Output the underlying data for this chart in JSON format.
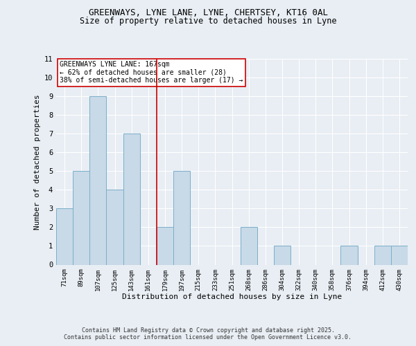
{
  "title_line1": "GREENWAYS, LYNE LANE, LYNE, CHERTSEY, KT16 0AL",
  "title_line2": "Size of property relative to detached houses in Lyne",
  "xlabel": "Distribution of detached houses by size in Lyne",
  "ylabel": "Number of detached properties",
  "categories": [
    "71sqm",
    "89sqm",
    "107sqm",
    "125sqm",
    "143sqm",
    "161sqm",
    "179sqm",
    "197sqm",
    "215sqm",
    "233sqm",
    "251sqm",
    "268sqm",
    "286sqm",
    "304sqm",
    "322sqm",
    "340sqm",
    "358sqm",
    "376sqm",
    "394sqm",
    "412sqm",
    "430sqm"
  ],
  "values": [
    3,
    5,
    9,
    4,
    7,
    0,
    2,
    5,
    0,
    0,
    0,
    2,
    0,
    1,
    0,
    0,
    0,
    1,
    0,
    1,
    1
  ],
  "bar_color": "#c8d9e8",
  "bar_edge_color": "#7aafc8",
  "vline_x": 5.5,
  "vline_color": "#cc0000",
  "annotation_text": "GREENWAYS LYNE LANE: 167sqm\n← 62% of detached houses are smaller (28)\n38% of semi-detached houses are larger (17) →",
  "annotation_box_color": "#ffffff",
  "annotation_box_edge": "#cc0000",
  "ylim": [
    0,
    11
  ],
  "yticks": [
    0,
    1,
    2,
    3,
    4,
    5,
    6,
    7,
    8,
    9,
    10,
    11
  ],
  "background_color": "#e8eef4",
  "footer_text": "Contains HM Land Registry data © Crown copyright and database right 2025.\nContains public sector information licensed under the Open Government Licence v3.0.",
  "grid_color": "#ffffff"
}
